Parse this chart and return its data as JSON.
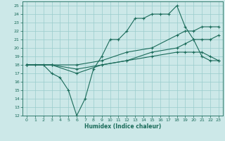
{
  "title": "",
  "xlabel": "Humidex (Indice chaleur)",
  "bg_color": "#cce8e8",
  "grid_color": "#99cccc",
  "line_color": "#1a6b5a",
  "xlim": [
    -0.5,
    23.5
  ],
  "ylim": [
    12,
    25.5
  ],
  "xticks": [
    0,
    1,
    2,
    3,
    4,
    5,
    6,
    7,
    8,
    9,
    10,
    11,
    12,
    13,
    14,
    15,
    16,
    17,
    18,
    19,
    20,
    21,
    22,
    23
  ],
  "yticks": [
    12,
    13,
    14,
    15,
    16,
    17,
    18,
    19,
    20,
    21,
    22,
    23,
    24,
    25
  ],
  "series": [
    {
      "x": [
        0,
        1,
        2,
        3,
        4,
        5,
        6,
        7,
        8,
        9,
        10,
        11,
        12,
        13,
        14,
        15,
        16,
        17,
        18,
        19,
        20,
        21,
        22,
        23
      ],
      "y": [
        18,
        18,
        18,
        17,
        16.5,
        15,
        12,
        14,
        17.5,
        19,
        21,
        21,
        22,
        23.5,
        23.5,
        24,
        24,
        24,
        25,
        22.5,
        21,
        19,
        18.5,
        18.5
      ]
    },
    {
      "x": [
        0,
        3,
        6,
        9,
        12,
        15,
        18,
        19,
        20,
        21,
        22,
        23
      ],
      "y": [
        18,
        18,
        18,
        18.5,
        19.5,
        20,
        21.5,
        22,
        22,
        22.5,
        22.5,
        22.5
      ]
    },
    {
      "x": [
        0,
        3,
        6,
        9,
        12,
        15,
        18,
        19,
        20,
        21,
        22,
        23
      ],
      "y": [
        18,
        18,
        17,
        18,
        18.5,
        19.5,
        20,
        20.5,
        21,
        21,
        21,
        21.5
      ]
    },
    {
      "x": [
        0,
        3,
        6,
        9,
        12,
        15,
        18,
        19,
        20,
        21,
        22,
        23
      ],
      "y": [
        18,
        18,
        17.5,
        18,
        18.5,
        19,
        19.5,
        19.5,
        19.5,
        19.5,
        19,
        18.5
      ]
    }
  ]
}
